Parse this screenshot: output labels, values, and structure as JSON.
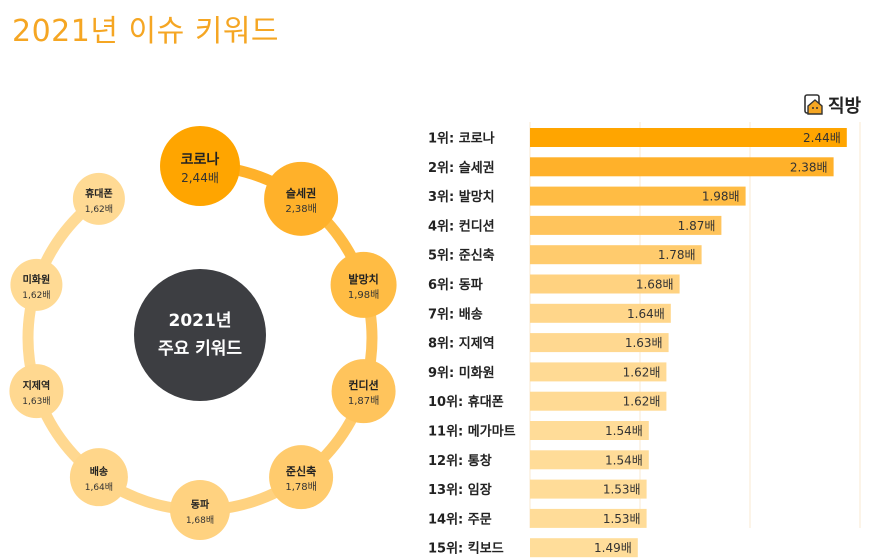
{
  "title": "2021년 이슈 키워드",
  "logo": {
    "text": "직방",
    "icon": "house-icon"
  },
  "center": {
    "line1": "2021년",
    "line2": "주요 키워드"
  },
  "colors": {
    "title": "#f5a623",
    "center": "#3d3e42",
    "ring": "#fdd58c",
    "bar_scale": [
      "#ffa500",
      "#ffb12a",
      "#ffbc44",
      "#ffc45c",
      "#ffcb6d",
      "#ffd280",
      "#ffd68a",
      "#ffd890",
      "#ffda94",
      "#ffda94",
      "#ffdc98",
      "#ffdc98",
      "#ffdc98",
      "#ffdc98",
      "#ffdd9a"
    ]
  },
  "chart_data": {
    "type": "bar",
    "orientation": "horizontal",
    "title": "2021년 이슈 키워드",
    "value_suffix": "배",
    "xlim": [
      1.0,
      2.5
    ],
    "grid": true,
    "items": [
      {
        "rank_label": "1위: 코로나",
        "name": "코로나",
        "value": 2.44,
        "bar_label": "2.44배",
        "node_label": "2,44배"
      },
      {
        "rank_label": "2위: 슬세권",
        "name": "슬세권",
        "value": 2.38,
        "bar_label": "2.38배",
        "node_label": "2,38배"
      },
      {
        "rank_label": "3위: 발망치",
        "name": "발망치",
        "value": 1.98,
        "bar_label": "1.98배",
        "node_label": "1,98배"
      },
      {
        "rank_label": "4위: 컨디션",
        "name": "컨디션",
        "value": 1.87,
        "bar_label": "1.87배",
        "node_label": "1,87배"
      },
      {
        "rank_label": "5위: 준신축",
        "name": "준신축",
        "value": 1.78,
        "bar_label": "1.78배",
        "node_label": "1,78배"
      },
      {
        "rank_label": "6위: 동파",
        "name": "동파",
        "value": 1.68,
        "bar_label": "1.68배",
        "node_label": "1,68배"
      },
      {
        "rank_label": "7위: 배송",
        "name": "배송",
        "value": 1.64,
        "bar_label": "1.64배",
        "node_label": "1,64배"
      },
      {
        "rank_label": "8위: 지제역",
        "name": "지제역",
        "value": 1.63,
        "bar_label": "1.63배",
        "node_label": "1,63배"
      },
      {
        "rank_label": "9위: 미화원",
        "name": "미화원",
        "value": 1.62,
        "bar_label": "1.62배",
        "node_label": "1,62배"
      },
      {
        "rank_label": "10위: 휴대폰",
        "name": "휴대폰",
        "value": 1.62,
        "bar_label": "1.62배",
        "node_label": "1,62배"
      },
      {
        "rank_label": "11위: 메가마트",
        "name": "메가마트",
        "value": 1.54,
        "bar_label": "1.54배"
      },
      {
        "rank_label": "12위: 통창",
        "name": "통창",
        "value": 1.54,
        "bar_label": "1.54배"
      },
      {
        "rank_label": "13위: 임장",
        "name": "임장",
        "value": 1.53,
        "bar_label": "1.53배"
      },
      {
        "rank_label": "14위: 주문",
        "name": "주문",
        "value": 1.53,
        "bar_label": "1.53배"
      },
      {
        "rank_label": "15위: 킥보드",
        "name": "킥보드",
        "value": 1.49,
        "bar_label": "1.49배"
      }
    ]
  }
}
